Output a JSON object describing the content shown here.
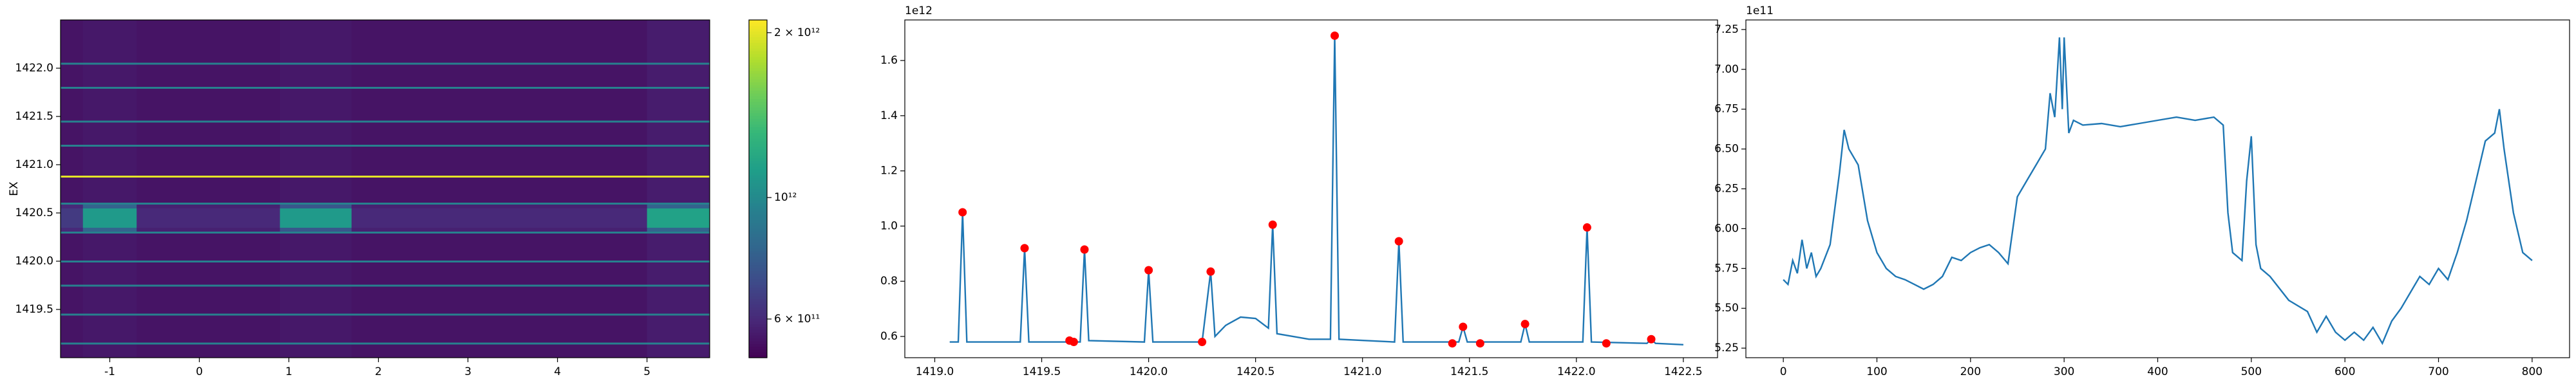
{
  "chart_data": [
    {
      "type": "heatmap",
      "ylabel": "EX",
      "colormap": "viridis",
      "log_color": true,
      "xlim": [
        -1.55,
        5.7
      ],
      "ylim": [
        1419.0,
        1422.5
      ],
      "xticks": [
        -1,
        0,
        1,
        2,
        3,
        4,
        5
      ],
      "yticks": [
        1419.5,
        {
          "value": 1420.0,
          "label": "1420.0"
        },
        1420.5,
        {
          "value": 1421.0,
          "label": "1421.0"
        },
        1421.5,
        {
          "value": 1422.0,
          "label": "1422.0"
        }
      ],
      "x_edges": [
        -1.55,
        -1.3,
        -0.7,
        0.9,
        1.7,
        5.0,
        5.7
      ],
      "y_edges": [
        1419.0,
        1419.14,
        1419.16,
        1419.44,
        1419.46,
        1419.74,
        1419.76,
        1419.99,
        1420.01,
        1420.29,
        1420.31,
        1420.35,
        1420.55,
        1420.59,
        1420.61,
        1420.87,
        1420.89,
        1421.19,
        1421.21,
        1421.44,
        1421.46,
        1421.79,
        1421.81,
        1422.04,
        1422.06,
        1422.5
      ],
      "z": [
        [
          550000000000.0,
          560000000000.0,
          550000000000.0,
          560000000000.0,
          550000000000.0,
          570000000000.0
        ],
        [
          950000000000.0,
          950000000000.0,
          950000000000.0,
          950000000000.0,
          950000000000.0,
          950000000000.0
        ],
        [
          550000000000.0,
          560000000000.0,
          550000000000.0,
          560000000000.0,
          550000000000.0,
          570000000000.0
        ],
        [
          950000000000.0,
          950000000000.0,
          950000000000.0,
          950000000000.0,
          950000000000.0,
          950000000000.0
        ],
        [
          550000000000.0,
          560000000000.0,
          550000000000.0,
          560000000000.0,
          550000000000.0,
          570000000000.0
        ],
        [
          950000000000.0,
          950000000000.0,
          950000000000.0,
          950000000000.0,
          950000000000.0,
          950000000000.0
        ],
        [
          550000000000.0,
          560000000000.0,
          550000000000.0,
          560000000000.0,
          550000000000.0,
          570000000000.0
        ],
        [
          950000000000.0,
          950000000000.0,
          950000000000.0,
          950000000000.0,
          950000000000.0,
          950000000000.0
        ],
        [
          550000000000.0,
          560000000000.0,
          550000000000.0,
          560000000000.0,
          550000000000.0,
          570000000000.0
        ],
        [
          950000000000.0,
          950000000000.0,
          950000000000.0,
          950000000000.0,
          950000000000.0,
          950000000000.0
        ],
        [
          600000000000.0,
          800000000000.0,
          580000000000.0,
          750000000000.0,
          580000000000.0,
          800000000000.0
        ],
        [
          650000000000.0,
          1100000000000.0,
          600000000000.0,
          1100000000000.0,
          600000000000.0,
          1150000000000.0
        ],
        [
          600000000000.0,
          800000000000.0,
          580000000000.0,
          750000000000.0,
          580000000000.0,
          800000000000.0
        ],
        [
          950000000000.0,
          950000000000.0,
          950000000000.0,
          950000000000.0,
          950000000000.0,
          950000000000.0
        ],
        [
          550000000000.0,
          560000000000.0,
          550000000000.0,
          560000000000.0,
          550000000000.0,
          570000000000.0
        ],
        [
          2000000000000.0,
          2000000000000.0,
          2000000000000.0,
          2000000000000.0,
          2000000000000.0,
          2000000000000.0
        ],
        [
          550000000000.0,
          560000000000.0,
          550000000000.0,
          560000000000.0,
          550000000000.0,
          570000000000.0
        ],
        [
          950000000000.0,
          950000000000.0,
          950000000000.0,
          950000000000.0,
          950000000000.0,
          950000000000.0
        ],
        [
          550000000000.0,
          560000000000.0,
          550000000000.0,
          560000000000.0,
          550000000000.0,
          570000000000.0
        ],
        [
          950000000000.0,
          950000000000.0,
          950000000000.0,
          950000000000.0,
          950000000000.0,
          950000000000.0
        ],
        [
          550000000000.0,
          560000000000.0,
          550000000000.0,
          560000000000.0,
          550000000000.0,
          570000000000.0
        ],
        [
          950000000000.0,
          950000000000.0,
          950000000000.0,
          950000000000.0,
          950000000000.0,
          950000000000.0
        ],
        [
          550000000000.0,
          560000000000.0,
          550000000000.0,
          560000000000.0,
          550000000000.0,
          570000000000.0
        ],
        [
          950000000000.0,
          950000000000.0,
          950000000000.0,
          950000000000.0,
          950000000000.0,
          950000000000.0
        ],
        [
          550000000000.0,
          560000000000.0,
          550000000000.0,
          560000000000.0,
          550000000000.0,
          570000000000.0
        ]
      ],
      "clim": [
        510000000000.0,
        2110000000000.0
      ],
      "cticks": [
        {
          "value": 2000000000000.0,
          "label": "2 × 10¹²"
        },
        {
          "value": 1000000000000.0,
          "label": "10¹²"
        },
        {
          "value": 600000000000.0,
          "label": "6 × 10¹¹"
        }
      ]
    },
    {
      "type": "line",
      "color": "#1f77b4",
      "offset_label": "1e12",
      "xlim": [
        1418.86,
        1422.66
      ],
      "ylim": [
        0.523,
        1.747
      ],
      "xticks": [
        {
          "value": 1419.0,
          "label": "1419.0"
        },
        1419.5,
        {
          "value": 1420.0,
          "label": "1420.0"
        },
        1420.5,
        {
          "value": 1421.0,
          "label": "1421.0"
        },
        1421.5,
        {
          "value": 1422.0,
          "label": "1422.0"
        },
        1422.5
      ],
      "yticks": [
        0.6,
        0.8,
        {
          "value": 1.0,
          "label": "1.0"
        },
        1.2,
        1.4,
        1.6
      ],
      "x": [
        1419.07,
        1419.11,
        1419.13,
        1419.15,
        1419.4,
        1419.42,
        1419.44,
        1419.68,
        1419.7,
        1419.72,
        1419.98,
        1420.0,
        1420.02,
        1420.25,
        1420.29,
        1420.31,
        1420.36,
        1420.43,
        1420.5,
        1420.56,
        1420.58,
        1420.6,
        1420.75,
        1420.85,
        1420.87,
        1420.89,
        1421.15,
        1421.17,
        1421.19,
        1421.45,
        1421.47,
        1421.49,
        1421.74,
        1421.76,
        1421.78,
        1422.03,
        1422.05,
        1422.07,
        1422.33,
        1422.35,
        1422.37,
        1422.5
      ],
      "values": [
        0.58,
        0.58,
        1.05,
        0.58,
        0.58,
        0.92,
        0.58,
        0.58,
        0.915,
        0.585,
        0.58,
        0.84,
        0.58,
        0.58,
        0.835,
        0.6,
        0.64,
        0.67,
        0.665,
        0.63,
        1.005,
        0.61,
        0.59,
        0.59,
        1.69,
        0.59,
        0.58,
        0.945,
        0.58,
        0.58,
        0.635,
        0.58,
        0.58,
        0.645,
        0.58,
        0.58,
        0.995,
        0.58,
        0.575,
        0.59,
        0.575,
        0.57
      ],
      "markers": {
        "color": "#ff0000",
        "x": [
          1419.13,
          1419.42,
          1419.63,
          1419.65,
          1419.7,
          1420.0,
          1420.25,
          1420.29,
          1420.58,
          1420.87,
          1421.17,
          1421.42,
          1421.47,
          1421.55,
          1421.76,
          1422.05,
          1422.14,
          1422.35
        ],
        "values": [
          1.05,
          0.92,
          0.585,
          0.58,
          0.915,
          0.84,
          0.58,
          0.835,
          1.005,
          1.69,
          0.945,
          0.575,
          0.635,
          0.575,
          0.645,
          0.995,
          0.575,
          0.59
        ]
      }
    },
    {
      "type": "line",
      "color": "#1f77b4",
      "offset_label": "1e11",
      "xlim": [
        -40,
        840
      ],
      "ylim": [
        5.19,
        7.31
      ],
      "xticks": [
        0,
        100,
        200,
        300,
        400,
        500,
        600,
        700,
        800
      ],
      "yticks": [
        5.25,
        {
          "value": 5.5,
          "label": "5.50"
        },
        5.75,
        {
          "value": 6.0,
          "label": "6.00"
        },
        6.25,
        {
          "value": 6.5,
          "label": "6.50"
        },
        6.75,
        {
          "value": 7.0,
          "label": "7.00"
        },
        7.25
      ],
      "x": [
        0,
        5,
        10,
        15,
        20,
        25,
        30,
        35,
        40,
        50,
        60,
        65,
        70,
        80,
        90,
        100,
        110,
        120,
        130,
        140,
        150,
        160,
        170,
        180,
        190,
        200,
        210,
        220,
        230,
        240,
        250,
        260,
        270,
        280,
        285,
        290,
        295,
        298,
        300,
        305,
        310,
        320,
        340,
        360,
        380,
        400,
        420,
        440,
        460,
        470,
        475,
        480,
        490,
        495,
        500,
        505,
        510,
        520,
        540,
        560,
        570,
        580,
        590,
        600,
        610,
        620,
        630,
        640,
        650,
        660,
        670,
        680,
        690,
        700,
        710,
        720,
        730,
        740,
        750,
        760,
        765,
        770,
        780,
        790,
        800
      ],
      "values": [
        5.68,
        5.65,
        5.8,
        5.72,
        5.93,
        5.75,
        5.85,
        5.7,
        5.75,
        5.9,
        6.35,
        6.62,
        6.5,
        6.4,
        6.05,
        5.85,
        5.75,
        5.7,
        5.68,
        5.65,
        5.62,
        5.65,
        5.7,
        5.82,
        5.8,
        5.85,
        5.88,
        5.9,
        5.85,
        5.78,
        6.2,
        6.3,
        6.4,
        6.5,
        6.85,
        6.7,
        7.2,
        6.75,
        7.2,
        6.6,
        6.68,
        6.65,
        6.66,
        6.64,
        6.66,
        6.68,
        6.7,
        6.68,
        6.7,
        6.65,
        6.1,
        5.85,
        5.8,
        6.3,
        6.58,
        5.9,
        5.75,
        5.7,
        5.55,
        5.48,
        5.35,
        5.45,
        5.35,
        5.3,
        5.35,
        5.3,
        5.38,
        5.28,
        5.42,
        5.5,
        5.6,
        5.7,
        5.65,
        5.75,
        5.68,
        5.85,
        6.05,
        6.3,
        6.55,
        6.6,
        6.75,
        6.5,
        6.1,
        5.85,
        5.8
      ]
    }
  ]
}
